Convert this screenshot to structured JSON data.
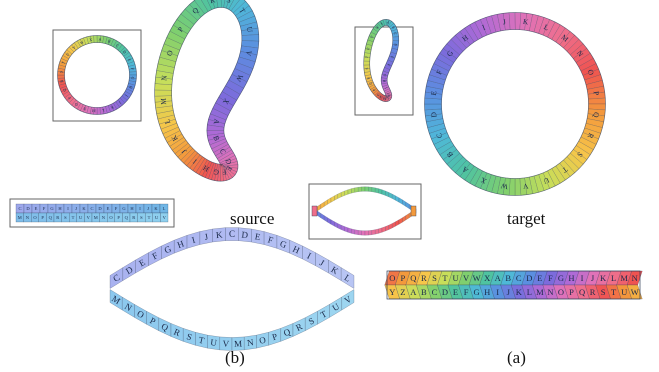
{
  "captions": {
    "source": "source",
    "target": "target",
    "panel_b": "(b)",
    "panel_a": "(a)"
  },
  "letters": {
    "big_bean": [
      "S",
      "T",
      "U",
      "V",
      "W",
      "X",
      "A",
      "B",
      "C",
      "D",
      "E",
      "F",
      "G",
      "H",
      "I",
      "J",
      "K",
      "L",
      "M",
      "N",
      "O",
      "P",
      "Q",
      "R"
    ],
    "big_ring": [
      "K",
      "L",
      "M",
      "N",
      "O",
      "P",
      "Q",
      "R",
      "S",
      "T",
      "U",
      "V",
      "W",
      "X",
      "A",
      "B",
      "C",
      "D",
      "E",
      "F",
      "G",
      "H",
      "I",
      "J"
    ],
    "small_ring": [
      "A",
      "B",
      "C",
      "D",
      "E",
      "F",
      "G",
      "H",
      "I",
      "J",
      "K",
      "L",
      "M",
      "N",
      "O",
      "P",
      "Q",
      "R",
      "S",
      "T",
      "U",
      "V",
      "W",
      "X"
    ],
    "small_bean": [
      "A",
      "B",
      "C",
      "D",
      "E",
      "F",
      "G",
      "H",
      "I",
      "J",
      "K",
      "L",
      "M",
      "N",
      "O",
      "P",
      "Q",
      "R",
      "S",
      "T",
      "U",
      "V",
      "W",
      "X"
    ],
    "lens_top": [
      "C",
      "D",
      "E",
      "F",
      "G",
      "H",
      "I",
      "J",
      "K",
      "C",
      "D",
      "E",
      "F",
      "G",
      "H",
      "I",
      "J",
      "K",
      "L"
    ],
    "lens_bottom": [
      "M",
      "N",
      "O",
      "P",
      "Q",
      "R",
      "S",
      "T",
      "U",
      "V",
      "M",
      "N",
      "O",
      "P",
      "Q",
      "R",
      "S",
      "T",
      "U",
      "V"
    ],
    "strip_top": [
      "C",
      "D",
      "E",
      "F",
      "G",
      "H",
      "I",
      "J",
      "K",
      "C",
      "D",
      "E",
      "F",
      "G",
      "H",
      "I",
      "J",
      "K",
      "L"
    ],
    "strip_bottom": [
      "M",
      "N",
      "O",
      "P",
      "Q",
      "R",
      "S",
      "T",
      "U",
      "V",
      "M",
      "N",
      "O",
      "P",
      "Q",
      "R",
      "S",
      "T",
      "U",
      "V"
    ],
    "band_top": [
      "O",
      "P",
      "Q",
      "R",
      "S",
      "T",
      "U",
      "V",
      "W",
      "X",
      "A",
      "B",
      "C",
      "D",
      "E",
      "F",
      "G",
      "H",
      "I",
      "J",
      "K",
      "L",
      "M",
      "N"
    ],
    "band_bottom": [
      "Y",
      "Z",
      "A",
      "B",
      "C",
      "D",
      "E",
      "F",
      "G",
      "H",
      "I",
      "J",
      "K",
      "L",
      "M",
      "N",
      "O",
      "P",
      "Q",
      "R",
      "S",
      "T",
      "U",
      "W"
    ]
  }
}
